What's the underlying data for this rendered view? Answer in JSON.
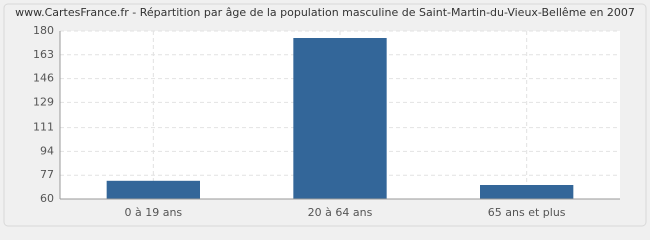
{
  "chart_data": {
    "type": "bar",
    "title": "www.CartesFrance.fr - Répartition par âge de la population masculine de Saint-Martin-du-Vieux-Bellême en 2007",
    "categories": [
      "0 à 19 ans",
      "20 à 64 ans",
      "65 ans et plus"
    ],
    "values": [
      73,
      175,
      70
    ],
    "color": "#336699",
    "ylim": [
      60,
      180
    ],
    "yticks": [
      60,
      77,
      94,
      111,
      129,
      146,
      163,
      180
    ],
    "grid": true
  }
}
